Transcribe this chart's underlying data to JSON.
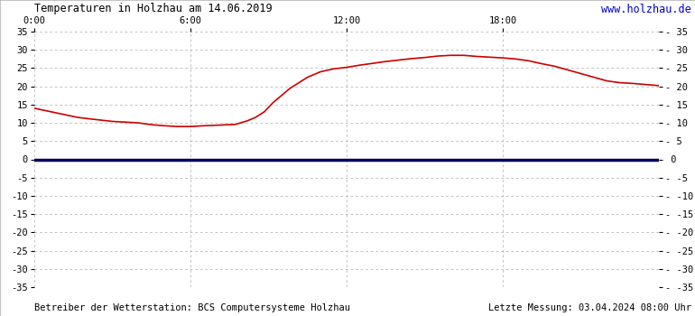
{
  "title": "Temperaturen in Holzhau am 14.06.2019",
  "url": "www.holzhau.de",
  "footer_left": "Betreiber der Wetterstation: BCS Computersysteme Holzhau",
  "footer_right": "Letzte Messung: 03.04.2024 08:00 Uhr",
  "xlim": [
    0,
    1440
  ],
  "ylim": [
    -35,
    35
  ],
  "xticks": [
    0,
    360,
    720,
    1080,
    1440
  ],
  "xtick_labels": [
    "0:00",
    "6:00",
    "12:00",
    "18:00",
    ""
  ],
  "yticks_left": [
    -35,
    -30,
    -25,
    -20,
    -15,
    -10,
    -5,
    0,
    5,
    10,
    15,
    20,
    25,
    30,
    35
  ],
  "yticks_right": [
    -35,
    -30,
    -25,
    -20,
    -15,
    -10,
    -5,
    0,
    5,
    10,
    15,
    20,
    25,
    30,
    35
  ],
  "grid_color": "#aaaaaa",
  "bg_color": "#ffffff",
  "temp_color": "#cc0000",
  "zero_line_color": "#000066",
  "title_color": "#000000",
  "url_color": "#0000cc",
  "footer_color": "#000000",
  "temp_data_x": [
    0,
    20,
    40,
    60,
    80,
    100,
    120,
    150,
    180,
    210,
    240,
    270,
    300,
    330,
    360,
    390,
    410,
    430,
    450,
    465,
    475,
    490,
    510,
    530,
    550,
    570,
    590,
    610,
    630,
    660,
    690,
    720,
    750,
    780,
    810,
    840,
    870,
    900,
    930,
    960,
    990,
    1020,
    1050,
    1080,
    1110,
    1140,
    1170,
    1200,
    1230,
    1260,
    1290,
    1320,
    1350,
    1380,
    1410,
    1440
  ],
  "temp_data_y": [
    14.0,
    13.5,
    13.0,
    12.5,
    12.0,
    11.5,
    11.2,
    10.8,
    10.4,
    10.2,
    10.0,
    9.5,
    9.2,
    9.0,
    9.0,
    9.2,
    9.3,
    9.4,
    9.5,
    9.6,
    10.0,
    10.5,
    11.5,
    13.0,
    15.5,
    17.5,
    19.5,
    21.0,
    22.5,
    24.0,
    24.8,
    25.2,
    25.8,
    26.3,
    26.8,
    27.2,
    27.6,
    27.9,
    28.3,
    28.5,
    28.5,
    28.2,
    28.0,
    27.8,
    27.5,
    27.0,
    26.2,
    25.5,
    24.5,
    23.5,
    22.5,
    21.5,
    21.0,
    20.8,
    20.5,
    20.2
  ]
}
